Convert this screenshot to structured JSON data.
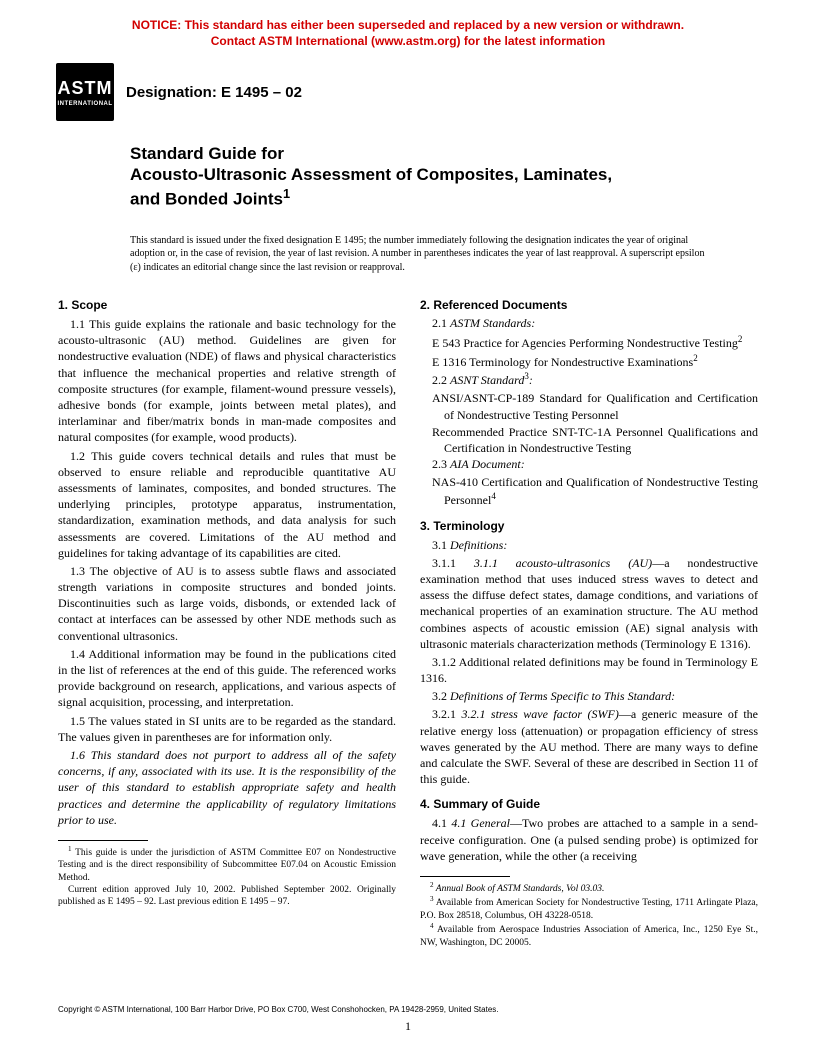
{
  "notice": {
    "line1": "NOTICE: This standard has either been superseded and replaced by a new version or withdrawn.",
    "line2": "Contact ASTM International (www.astm.org) for the latest information",
    "color": "#d20000"
  },
  "logo": {
    "top": "ASTM",
    "bottom": "INTERNATIONAL"
  },
  "designation": "Designation: E 1495 – 02",
  "title": {
    "l1": "Standard Guide for",
    "l2": "Acousto-Ultrasonic Assessment of Composites, Laminates,",
    "l3": "and Bonded Joints",
    "sup": "1"
  },
  "issuance": "This standard is issued under the fixed designation E 1495; the number immediately following the designation indicates the year of original adoption or, in the case of revision, the year of last revision. A number in parentheses indicates the year of last reapproval. A superscript epsilon (ε) indicates an editorial change since the last revision or reapproval.",
  "s1": {
    "head": "1. Scope",
    "p1": "1.1 This guide explains the rationale and basic technology for the acousto-ultrasonic (AU) method. Guidelines are given for nondestructive evaluation (NDE) of flaws and physical characteristics that influence the mechanical properties and relative strength of composite structures (for example, filament-wound pressure vessels), adhesive bonds (for example, joints between metal plates), and interlaminar and fiber/matrix bonds in man-made composites and natural composites (for example, wood products).",
    "p2": "1.2 This guide covers technical details and rules that must be observed to ensure reliable and reproducible quantitative AU assessments of laminates, composites, and bonded structures. The underlying principles, prototype apparatus, instrumentation, standardization, examination methods, and data analysis for such assessments are covered. Limitations of the AU method and guidelines for taking advantage of its capabilities are cited.",
    "p3": "1.3 The objective of AU is to assess subtle flaws and associated strength variations in composite structures and bonded joints. Discontinuities such as large voids, disbonds, or extended lack of contact at interfaces can be assessed by other NDE methods such as conventional ultrasonics.",
    "p4": "1.4 Additional information may be found in the publications cited in the list of references at the end of this guide. The referenced works provide background on research, applications, and various aspects of signal acquisition, processing, and interpretation.",
    "p5": "1.5 The values stated in SI units are to be regarded as the standard. The values given in parentheses are for information only.",
    "p6": "1.6 This standard does not purport to address all of the safety concerns, if any, associated with its use. It is the responsibility of the user of this standard to establish appropriate safety and health practices and determine the applicability of regulatory limitations prior to use."
  },
  "s2": {
    "head": "2. Referenced Documents",
    "sub1": "2.1 ASTM Standards:",
    "r1a": "E 543 Practice for Agencies Performing Nondestructive Testing",
    "r1b": "E 1316 Terminology for Nondestructive Examinations",
    "sub2": "2.2 ASNT Standard",
    "r2a": "ANSI/ASNT-CP-189 Standard for Qualification and Certification of Nondestructive Testing Personnel",
    "r2b": "Recommended Practice SNT-TC-1A Personnel Qualifications and Certification in Nondestructive Testing",
    "sub3": "2.3 AIA Document:",
    "r3a": "NAS-410 Certification and Qualification of Nondestructive Testing Personnel"
  },
  "s3": {
    "head": "3. Terminology",
    "sub1": "3.1 Definitions:",
    "p1a": "3.1.1 acousto-ultrasonics (AU)",
    "p1b": "—a nondestructive examination method that uses induced stress waves to detect and assess the diffuse defect states, damage conditions, and variations of mechanical properties of an examination structure. The AU method combines aspects of acoustic emission (AE) signal analysis with ultrasonic materials characterization methods (Terminology E 1316).",
    "p2": "3.1.2 Additional related definitions may be found in Terminology E 1316.",
    "sub2": "3.2 Definitions of Terms Specific to This Standard:",
    "p3a": "3.2.1 stress wave factor (SWF)",
    "p3b": "—a generic measure of the relative energy loss (attenuation) or propagation efficiency of stress waves generated by the AU method. There are many ways to define and calculate the SWF. Several of these are described in Section 11 of this guide."
  },
  "s4": {
    "head": "4. Summary of Guide",
    "p1a": "4.1 General",
    "p1b": "—Two probes are attached to a sample in a send-receive configuration. One (a pulsed sending probe) is optimized for wave generation, while the other (a receiving"
  },
  "fn_left": {
    "f1a": "1",
    "f1b": " This guide is under the jurisdiction of ASTM Committee E07 on Nondestructive Testing and is the direct responsibility of Subcommittee E07.04 on Acoustic Emission Method.",
    "f1c": "Current edition approved July 10, 2002. Published September 2002. Originally published as E 1495 – 92. Last previous edition E 1495 – 97."
  },
  "fn_right": {
    "f2": " Annual Book of ASTM Standards, Vol 03.03.",
    "f3": " Available from American Society for Nondestructive Testing, 1711 Arlingate Plaza, P.O. Box 28518, Columbus, OH 43228-0518.",
    "f4": " Available from Aerospace Industries Association of America, Inc., 1250 Eye St., NW, Washington, DC 20005."
  },
  "copyright": "Copyright © ASTM International, 100 Barr Harbor Drive, PO Box C700, West Conshohocken, PA 19428-2959, United States.",
  "pagenum": "1"
}
